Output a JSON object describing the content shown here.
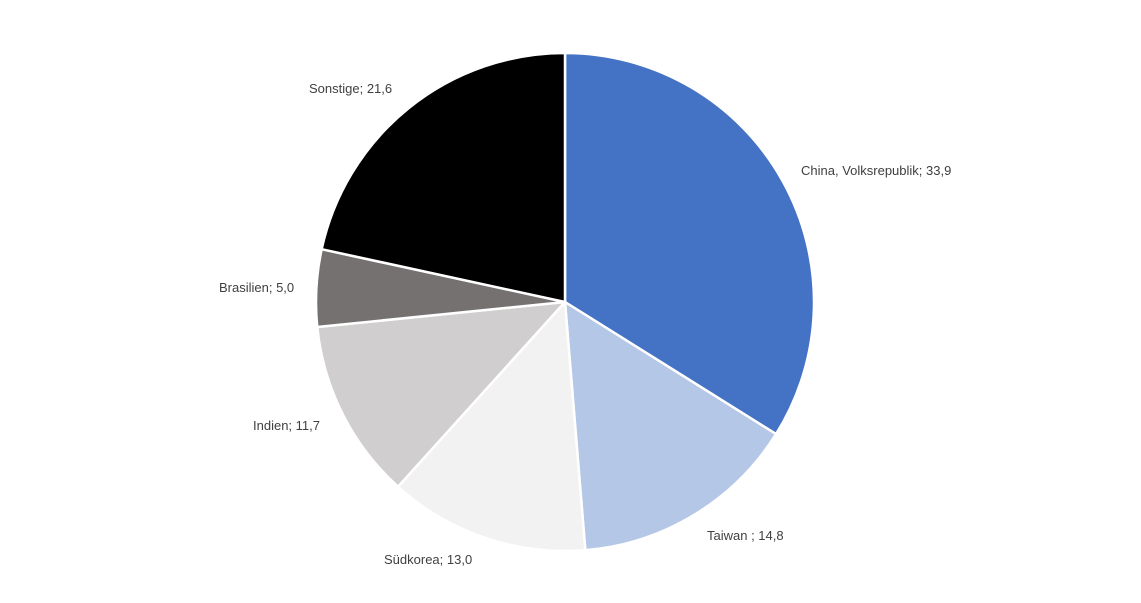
{
  "chart_data": {
    "type": "pie",
    "categories": [
      "China, Volksrepublik",
      "Taiwan ",
      "Südkorea",
      "Indien",
      "Brasilien",
      "Sonstige"
    ],
    "values": [
      33.9,
      14.8,
      13.0,
      11.7,
      5.0,
      21.6
    ],
    "value_labels": [
      "33,9",
      "14,8",
      "13,0",
      "11,7",
      "5,0",
      "21,6"
    ],
    "data_labels": [
      "China, Volksrepublik; 33,9",
      "Taiwan ; 14,8",
      "Südkorea; 13,0",
      "Indien; 11,7",
      "Brasilien; 5,0",
      "Sonstige; 21,6"
    ],
    "colors": [
      "#4472c4",
      "#b4c7e7",
      "#f2f2f2",
      "#d0cece",
      "#767171",
      "#000000"
    ],
    "start_angle": "12 o'clock",
    "direction": "clockwise",
    "legend": "none",
    "slice_border_color": "#ffffff",
    "label_color": "#404040"
  }
}
